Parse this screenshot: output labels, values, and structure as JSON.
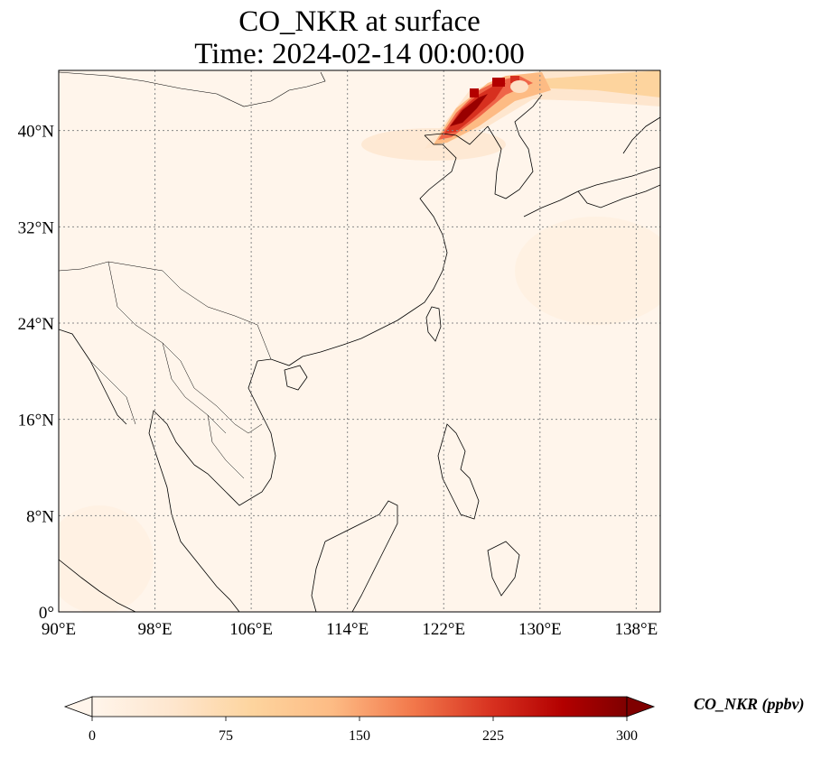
{
  "title": {
    "line1": "CO_NKR at surface",
    "line2": "Time: 2024-02-14 00:00:00"
  },
  "map": {
    "lon_range": [
      90,
      140
    ],
    "lat_range": [
      0,
      45
    ],
    "lon_ticks": [
      90,
      98,
      106,
      114,
      122,
      130,
      138
    ],
    "lat_ticks": [
      0,
      8,
      16,
      24,
      32,
      40
    ],
    "lon_labels": [
      "90°E",
      "98°E",
      "106°E",
      "114°E",
      "122°E",
      "130°E",
      "138°E"
    ],
    "lat_labels": [
      "0°",
      "8°N",
      "16°N",
      "24°N",
      "32°N",
      "40°N"
    ],
    "background_color": "#fff5eb",
    "gridline_style": "dotted gray"
  },
  "colorbar": {
    "label": "CO_NKR (ppbv)",
    "min": 0,
    "max": 300,
    "ticks": [
      "0",
      "75",
      "150",
      "225",
      "300"
    ],
    "colormap": "OrRd-style",
    "colors": [
      "#fff5eb",
      "#fee6ce",
      "#fdd0a2",
      "#fdae6b",
      "#f16913",
      "#d94801",
      "#b30000",
      "#7f0000"
    ],
    "extend": "both"
  }
}
